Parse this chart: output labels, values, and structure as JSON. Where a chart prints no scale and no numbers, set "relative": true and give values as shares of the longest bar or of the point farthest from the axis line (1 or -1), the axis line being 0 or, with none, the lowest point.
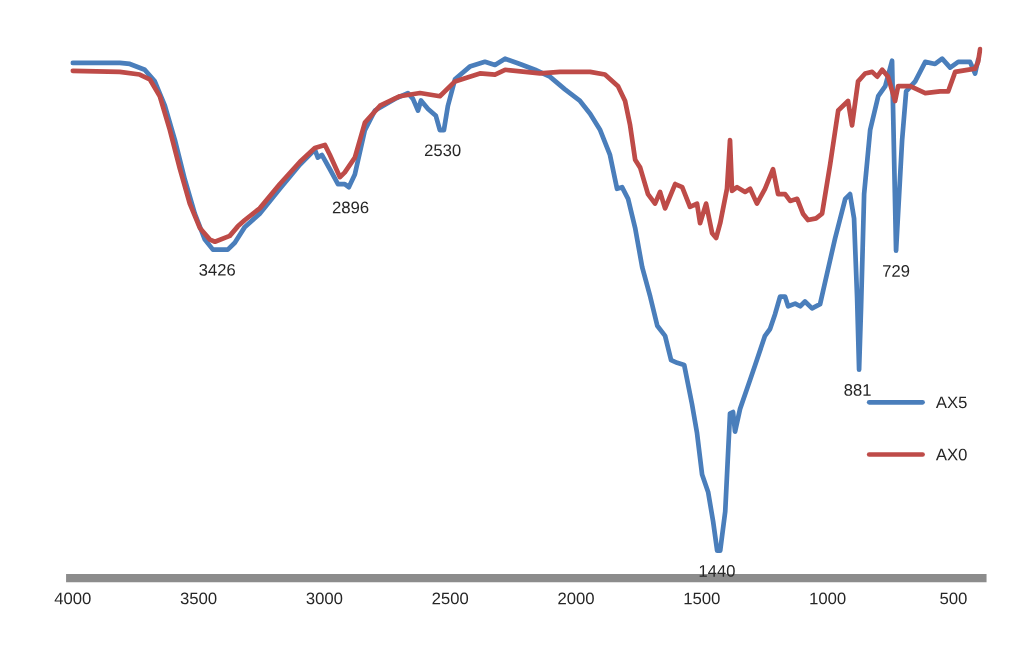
{
  "chart_data": {
    "type": "line",
    "relative": true,
    "xlim": [
      4010,
      385
    ],
    "xticks": [
      4000,
      3500,
      3000,
      2500,
      2000,
      1500,
      1000,
      500
    ],
    "grid": false,
    "legend": "right",
    "marker": "none",
    "line_style": "solid",
    "series": [
      {
        "name": "AX5",
        "color": "#4a7ebb",
        "x": [
          4000,
          3813,
          3773,
          3714,
          3674,
          3634,
          3594,
          3555,
          3515,
          3475,
          3443,
          3384,
          3356,
          3316,
          3257,
          3177,
          3097,
          3038,
          3026,
          3010,
          2978,
          2946,
          2919,
          2903,
          2879,
          2839,
          2799,
          2720,
          2668,
          2648,
          2628,
          2616,
          2588,
          2557,
          2541,
          2525,
          2509,
          2481,
          2422,
          2362,
          2322,
          2282,
          2223,
          2163,
          2104,
          2044,
          1984,
          1944,
          1904,
          1865,
          1837,
          1817,
          1793,
          1765,
          1737,
          1705,
          1677,
          1646,
          1622,
          1598,
          1570,
          1539,
          1519,
          1499,
          1475,
          1455,
          1439,
          1427,
          1407,
          1388,
          1376,
          1368,
          1348,
          1308,
          1288,
          1249,
          1229,
          1209,
          1189,
          1169,
          1157,
          1129,
          1109,
          1090,
          1062,
          1030,
          1010,
          970,
          930,
          911,
          895,
          883,
          875,
          867,
          855,
          831,
          799,
          771,
          744,
          728,
          704,
          688,
          652,
          612,
          573,
          545,
          513,
          481,
          434,
          414,
          402
        ],
        "values": [
          0.974,
          0.974,
          0.972,
          0.961,
          0.939,
          0.893,
          0.828,
          0.754,
          0.689,
          0.64,
          0.621,
          0.621,
          0.634,
          0.664,
          0.689,
          0.736,
          0.782,
          0.81,
          0.795,
          0.8,
          0.773,
          0.745,
          0.745,
          0.739,
          0.763,
          0.847,
          0.884,
          0.906,
          0.917,
          0.906,
          0.884,
          0.903,
          0.887,
          0.874,
          0.847,
          0.847,
          0.893,
          0.943,
          0.967,
          0.976,
          0.97,
          0.982,
          0.972,
          0.961,
          0.948,
          0.924,
          0.902,
          0.878,
          0.847,
          0.8,
          0.736,
          0.739,
          0.717,
          0.662,
          0.588,
          0.532,
          0.477,
          0.458,
          0.412,
          0.407,
          0.403,
          0.329,
          0.274,
          0.196,
          0.163,
          0.107,
          0.052,
          0.052,
          0.126,
          0.311,
          0.314,
          0.277,
          0.32,
          0.375,
          0.403,
          0.458,
          0.471,
          0.499,
          0.532,
          0.532,
          0.514,
          0.519,
          0.514,
          0.523,
          0.51,
          0.518,
          0.56,
          0.643,
          0.717,
          0.726,
          0.68,
          0.532,
          0.394,
          0.514,
          0.726,
          0.847,
          0.911,
          0.93,
          0.978,
          0.619,
          0.828,
          0.92,
          0.939,
          0.976,
          0.972,
          0.982,
          0.965,
          0.976,
          0.976,
          0.954,
          0.98
        ]
      },
      {
        "name": "AX0",
        "color": "#be4b48",
        "x": [
          4000,
          3813,
          3734,
          3694,
          3654,
          3614,
          3574,
          3535,
          3495,
          3455,
          3435,
          3376,
          3344,
          3316,
          3257,
          3177,
          3097,
          3038,
          2998,
          2978,
          2938,
          2919,
          2879,
          2839,
          2779,
          2700,
          2620,
          2541,
          2481,
          2382,
          2322,
          2282,
          2143,
          2064,
          1944,
          1885,
          1833,
          1805,
          1785,
          1765,
          1745,
          1714,
          1686,
          1666,
          1646,
          1606,
          1578,
          1547,
          1519,
          1507,
          1483,
          1459,
          1443,
          1427,
          1400,
          1388,
          1380,
          1360,
          1328,
          1308,
          1281,
          1249,
          1217,
          1197,
          1169,
          1149,
          1121,
          1098,
          1078,
          1046,
          1022,
          990,
          958,
          919,
          903,
          879,
          851,
          823,
          803,
          783,
          760,
          732,
          720,
          672,
          612,
          553,
          521,
          493,
          414,
          402,
          394
        ],
        "values": [
          0.959,
          0.957,
          0.952,
          0.943,
          0.911,
          0.847,
          0.773,
          0.708,
          0.662,
          0.64,
          0.636,
          0.647,
          0.665,
          0.677,
          0.699,
          0.745,
          0.787,
          0.813,
          0.819,
          0.8,
          0.758,
          0.767,
          0.795,
          0.861,
          0.893,
          0.911,
          0.917,
          0.911,
          0.939,
          0.954,
          0.952,
          0.961,
          0.954,
          0.957,
          0.957,
          0.952,
          0.93,
          0.902,
          0.856,
          0.791,
          0.776,
          0.726,
          0.708,
          0.73,
          0.699,
          0.745,
          0.739,
          0.702,
          0.708,
          0.671,
          0.708,
          0.652,
          0.643,
          0.671,
          0.736,
          0.828,
          0.732,
          0.739,
          0.73,
          0.736,
          0.708,
          0.736,
          0.773,
          0.726,
          0.726,
          0.713,
          0.717,
          0.689,
          0.677,
          0.68,
          0.689,
          0.782,
          0.884,
          0.902,
          0.856,
          0.939,
          0.954,
          0.957,
          0.948,
          0.961,
          0.948,
          0.902,
          0.93,
          0.93,
          0.917,
          0.92,
          0.92,
          0.957,
          0.963,
          0.976,
          1.0
        ]
      }
    ],
    "annotations": [
      {
        "text": "3426",
        "x": 3426,
        "y": 0.621
      },
      {
        "text": "2896",
        "x": 2896,
        "y": 0.739
      },
      {
        "text": "2530",
        "x": 2530,
        "y": 0.847
      },
      {
        "text": "1440",
        "x": 1440,
        "y": 0.052
      },
      {
        "text": "881",
        "x": 881,
        "y": 0.394
      },
      {
        "text": "729",
        "x": 728,
        "y": 0.619
      }
    ]
  }
}
